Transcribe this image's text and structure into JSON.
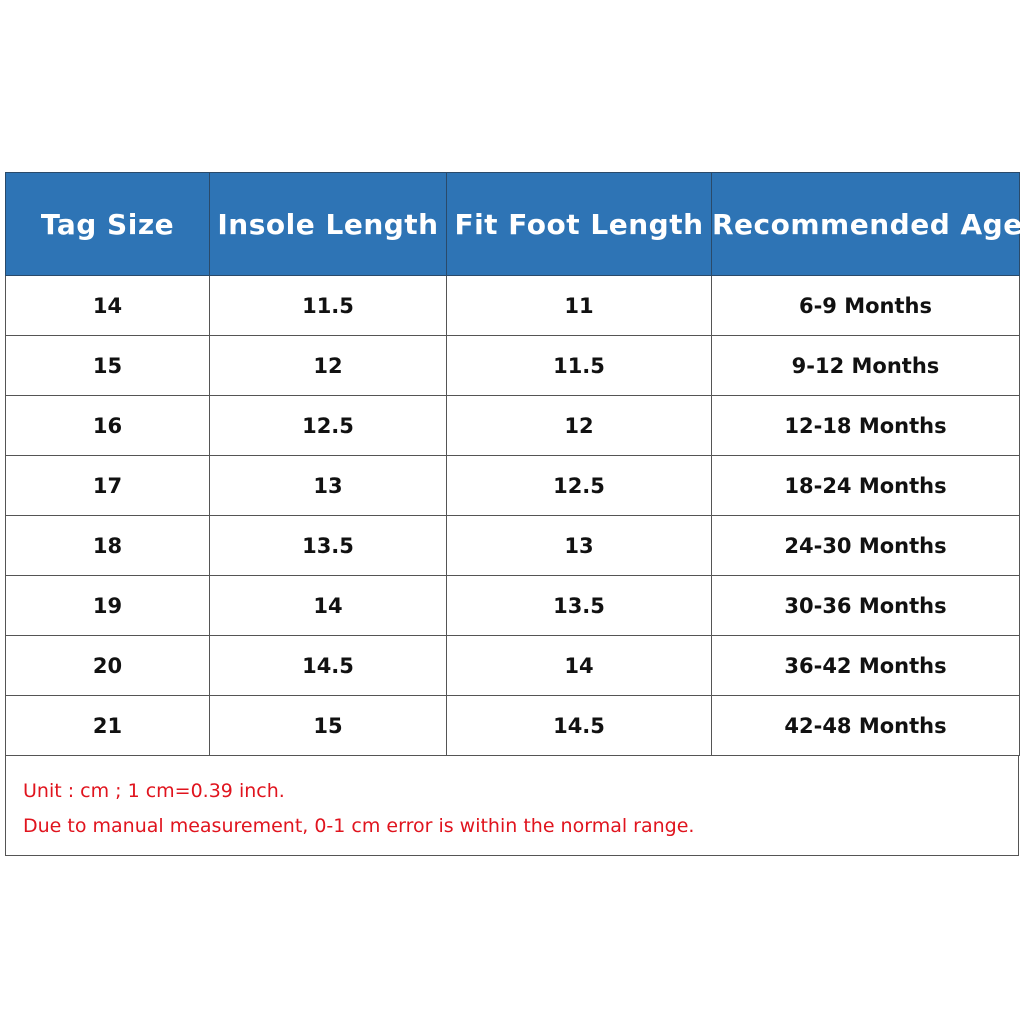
{
  "table": {
    "headers": [
      "Tag Size",
      "Insole Length",
      "Fit Foot Length",
      "Recommended Age"
    ],
    "rows": [
      [
        "14",
        "11.5",
        "11",
        "6-9 Months"
      ],
      [
        "15",
        "12",
        "11.5",
        "9-12 Months"
      ],
      [
        "16",
        "12.5",
        "12",
        "12-18 Months"
      ],
      [
        "17",
        "13",
        "12.5",
        "18-24 Months"
      ],
      [
        "18",
        "13.5",
        "13",
        "24-30 Months"
      ],
      [
        "19",
        "14",
        "13.5",
        "30-36 Months"
      ],
      [
        "20",
        "14.5",
        "14",
        "36-42 Months"
      ],
      [
        "21",
        "15",
        "14.5",
        "42-48 Months"
      ]
    ]
  },
  "notes": [
    "Unit : cm ; 1 cm=0.39 inch.",
    "Due to manual measurement, 0-1 cm error is within the normal range."
  ],
  "colors": {
    "header_bg": "#2e74b5",
    "header_text": "#ffffff",
    "note_text": "#e0141e"
  }
}
